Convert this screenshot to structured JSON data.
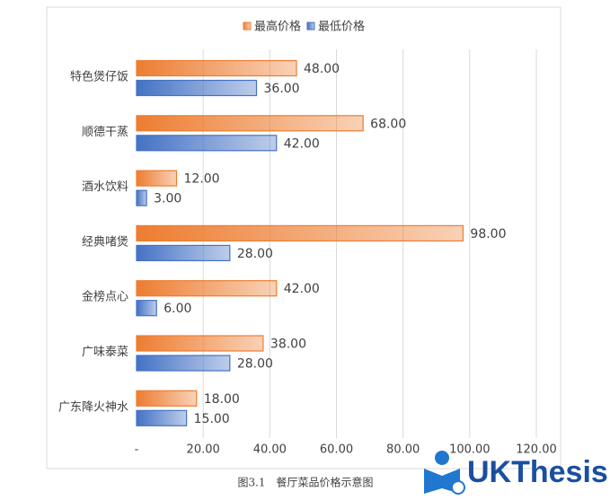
{
  "chart_data": {
    "type": "bar",
    "orientation": "horizontal",
    "categories": [
      "特色煲仔饭",
      "顺德干蒸",
      "酒水饮料",
      "经典啫煲",
      "金榜点心",
      "广味泰菜",
      "广东降火神水"
    ],
    "series": [
      {
        "name": "最高价格",
        "color": "#ed7d31",
        "values": [
          48,
          68,
          12,
          98,
          42,
          38,
          18
        ],
        "value_labels": [
          "48.00",
          "68.00",
          "12.00",
          "98.00",
          "42.00",
          "38.00",
          "18.00"
        ]
      },
      {
        "name": "最低价格",
        "color": "#4472c4",
        "values": [
          36,
          42,
          3,
          28,
          6,
          28,
          15
        ],
        "value_labels": [
          "36.00",
          "42.00",
          "3.00",
          "28.00",
          "6.00",
          "28.00",
          "15.00"
        ]
      }
    ],
    "xlim": [
      0,
      120
    ],
    "xticks": [
      {
        "value": 0,
        "label": "-"
      },
      {
        "value": 20,
        "label": "20.00"
      },
      {
        "value": 40,
        "label": "40.00"
      },
      {
        "value": 60,
        "label": "60.00"
      },
      {
        "value": 80,
        "label": "80.00"
      },
      {
        "value": 100,
        "label": "100.00"
      },
      {
        "value": 120,
        "label": "120.00"
      }
    ],
    "grid": true,
    "legend": "top"
  },
  "caption": "图3.1　餐厅菜品价格示意图",
  "watermark": "UKThesis"
}
